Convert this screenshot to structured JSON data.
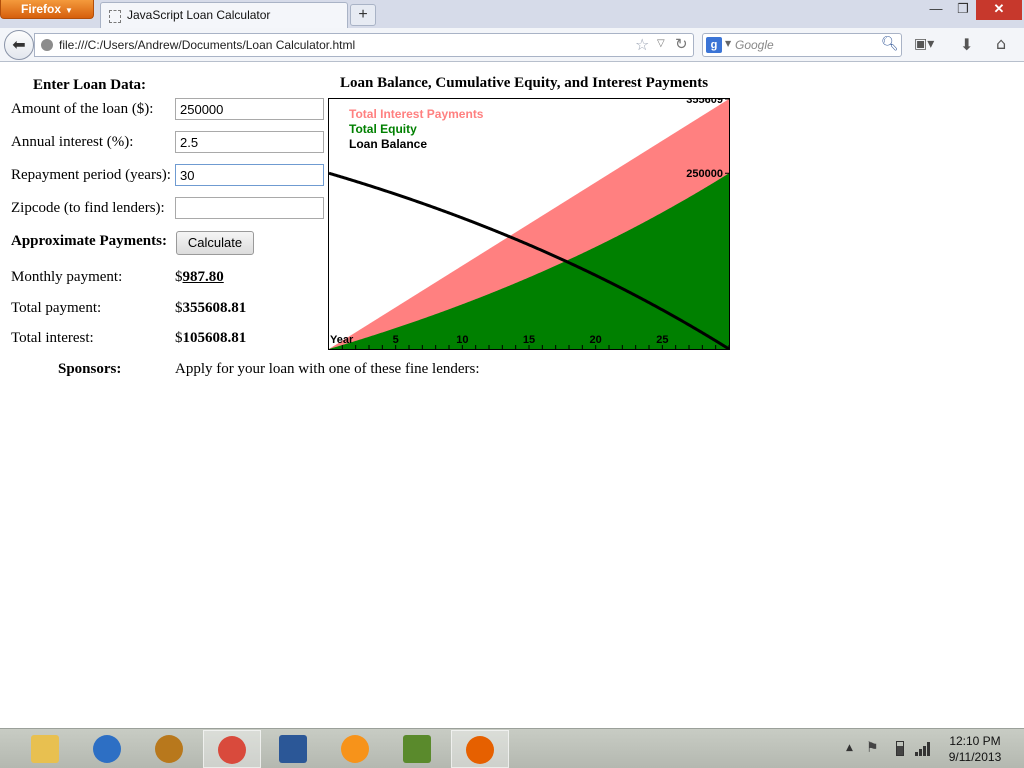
{
  "browser": {
    "app_button": "Firefox",
    "tab_title": "JavaScript Loan Calculator",
    "new_tab": "+",
    "url": "file:///C:/Users/Andrew/Documents/Loan Calculator.html",
    "search_placeholder": "Google",
    "search_engine": "g"
  },
  "form": {
    "heading": "Enter Loan Data:",
    "amount_label": "Amount of the loan ($):",
    "amount_value": "250000",
    "interest_label": "Annual interest (%):",
    "interest_value": "2.5",
    "period_label": "Repayment period (years):",
    "period_value": "30",
    "zip_label": "Zipcode (to find lenders):",
    "zip_value": "",
    "payments_heading": "Approximate Payments:",
    "calculate_label": "Calculate",
    "monthly_label": "Monthly payment:",
    "monthly_value": "987.80",
    "total_label": "Total payment:",
    "total_value": "355608.81",
    "interest_total_label": "Total interest:",
    "interest_total_value": "105608.81",
    "currency": "$",
    "sponsors_label": "Sponsors:",
    "sponsors_text": "Apply for your loan with one of these fine lenders:"
  },
  "chart_data": {
    "type": "area",
    "title": "Loan Balance, Cumulative Equity, and Interest Payments",
    "xlabel": "Year",
    "x_ticks": [
      5,
      10,
      15,
      20,
      25
    ],
    "xlim": [
      0,
      30
    ],
    "ylim": [
      0,
      355609
    ],
    "y_tick_labels": [
      "355609",
      "250000"
    ],
    "y_ticks": [
      355609,
      250000
    ],
    "legend_position": "top-left",
    "principal": 250000,
    "annual_rate_percent": 2.5,
    "years": 30,
    "total_payments": 355609,
    "series": [
      {
        "name": "Total Interest Payments",
        "color": "#ff8080",
        "fill": true
      },
      {
        "name": "Total Equity",
        "color": "#008000",
        "fill": true
      },
      {
        "name": "Loan Balance",
        "color": "#000000",
        "fill": false
      }
    ]
  },
  "taskbar": {
    "time": "12:10 PM",
    "date": "9/11/2013",
    "apps": [
      {
        "name": "file-explorer",
        "color": "#e8c050"
      },
      {
        "name": "malwarebytes",
        "color": "#2d6fc4"
      },
      {
        "name": "star-wars-tor",
        "color": "#b8781c"
      },
      {
        "name": "chrome",
        "color": "#d94a3c"
      },
      {
        "name": "word",
        "color": "#2b5797"
      },
      {
        "name": "bitcoin",
        "color": "#f7931a"
      },
      {
        "name": "minecraft",
        "color": "#5a8a2c"
      },
      {
        "name": "firefox",
        "color": "#e66000"
      }
    ]
  }
}
